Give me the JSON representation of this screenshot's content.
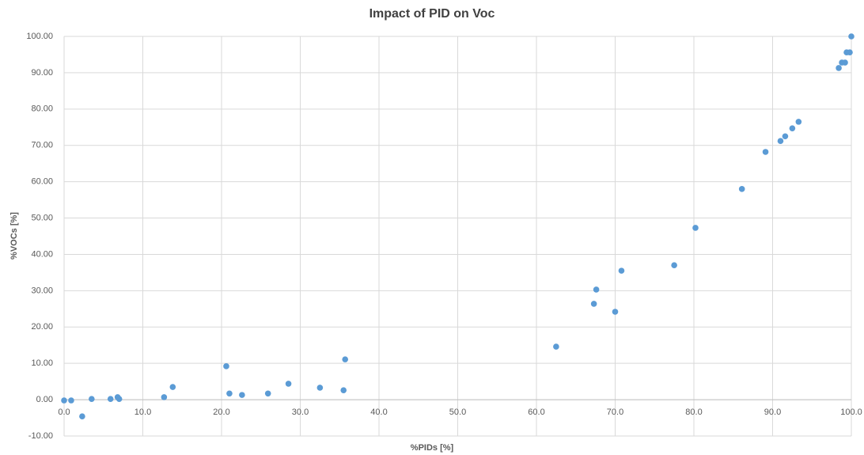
{
  "chart_data": {
    "type": "scatter",
    "title": "Impact of PID on Voc",
    "x_label": "%PIDs [%]",
    "y_label": "%VOCs [%]",
    "color": "#5b9bd5",
    "grid": true,
    "xlim": [
      0,
      100
    ],
    "ylim": [
      -10,
      100
    ],
    "xticks": [
      {
        "value": 0,
        "label": "0.0"
      },
      {
        "value": 10,
        "label": "10.0"
      },
      {
        "value": 20,
        "label": "20.0"
      },
      {
        "value": 30,
        "label": "30.0"
      },
      {
        "value": 40,
        "label": "40.0"
      },
      {
        "value": 50,
        "label": "50.0"
      },
      {
        "value": 60,
        "label": "60.0"
      },
      {
        "value": 70,
        "label": "70.0"
      },
      {
        "value": 80,
        "label": "80.0"
      },
      {
        "value": 90,
        "label": "90.0"
      },
      {
        "value": 100,
        "label": "100.0"
      }
    ],
    "yticks": [
      {
        "value": -10,
        "label": "-10.00"
      },
      {
        "value": 0,
        "label": "0.00"
      },
      {
        "value": 10,
        "label": "10.00"
      },
      {
        "value": 20,
        "label": "20.00"
      },
      {
        "value": 30,
        "label": "30.00"
      },
      {
        "value": 40,
        "label": "40.00"
      },
      {
        "value": 50,
        "label": "50.00"
      },
      {
        "value": 60,
        "label": "60.00"
      },
      {
        "value": 70,
        "label": "70.00"
      },
      {
        "value": 80,
        "label": "80.00"
      },
      {
        "value": 90,
        "label": "90.00"
      },
      {
        "value": 100,
        "label": "100.00"
      }
    ],
    "x": [
      0.0,
      0.9,
      2.3,
      3.5,
      5.9,
      6.8,
      7.0,
      12.7,
      13.8,
      20.6,
      21.0,
      22.6,
      25.9,
      28.5,
      32.5,
      35.5,
      35.7,
      62.5,
      67.3,
      67.6,
      70.0,
      70.8,
      77.5,
      80.2,
      86.1,
      89.1,
      91.0,
      91.6,
      92.5,
      93.3,
      98.4,
      98.8,
      99.2,
      99.4,
      99.8,
      100
    ],
    "values": [
      -0.2,
      -0.2,
      -4.6,
      0.2,
      0.2,
      0.7,
      0.2,
      0.7,
      3.5,
      9.2,
      1.7,
      1.3,
      1.7,
      4.4,
      3.3,
      2.6,
      11.1,
      14.6,
      26.4,
      30.3,
      24.2,
      35.5,
      37.0,
      47.3,
      58.0,
      68.2,
      71.2,
      72.5,
      74.7,
      76.5,
      91.3,
      92.8,
      92.8,
      95.6,
      95.6,
      100
    ]
  }
}
